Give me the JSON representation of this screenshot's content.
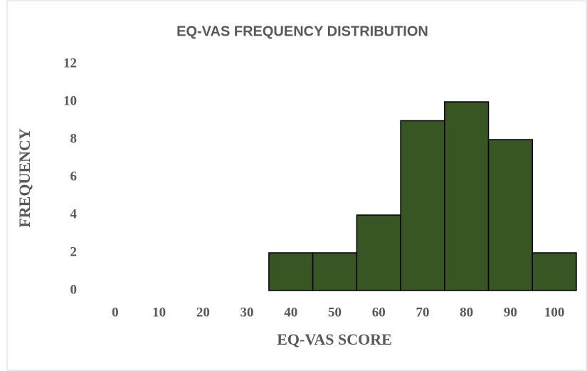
{
  "chart_data": {
    "type": "bar",
    "title": "EQ-VAS FREQUENCY DISTRIBUTION",
    "x_label": "EQ-VAS SCORE",
    "y_label": "FREQUENCY",
    "categories": [
      "0",
      "10",
      "20",
      "30",
      "40",
      "50",
      "60",
      "70",
      "80",
      "90",
      "100"
    ],
    "values": [
      0,
      0,
      0,
      0,
      2,
      2,
      4,
      9,
      10,
      8,
      2
    ],
    "color": "#375623",
    "ylim": [
      0,
      12
    ],
    "yticks": [
      0,
      2,
      4,
      6,
      8,
      10,
      12
    ],
    "grid": false
  }
}
